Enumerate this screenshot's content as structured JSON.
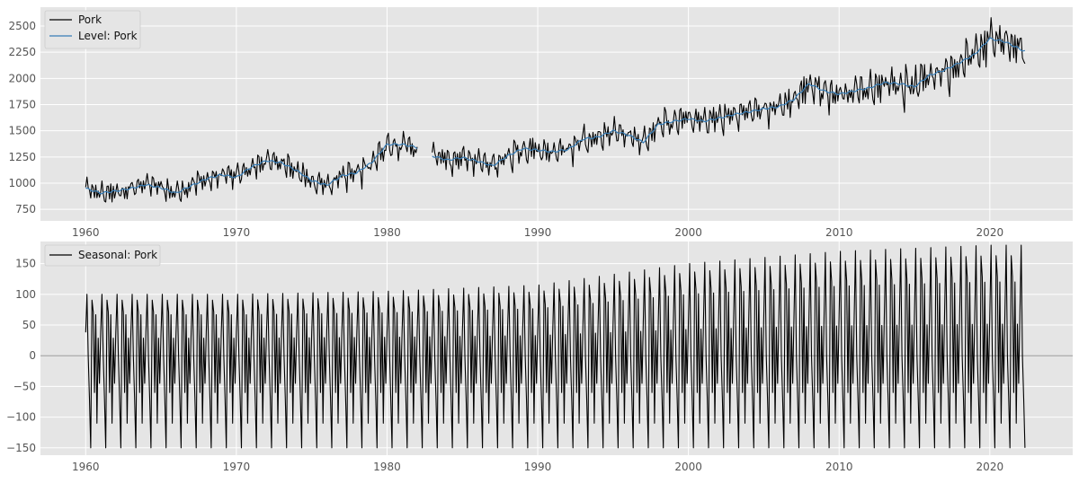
{
  "chart_data": [
    {
      "type": "line",
      "title": "",
      "xlabel": "",
      "ylabel": "",
      "xlim": [
        1957,
        2025.5
      ],
      "ylim": [
        640,
        2680
      ],
      "grid": true,
      "legend": "top-left",
      "x_ticks": [
        1960,
        1970,
        1980,
        1990,
        2000,
        2010,
        2020
      ],
      "x_tick_labels": [
        "1960",
        "1970",
        "1980",
        "1990",
        "2000",
        "2010",
        "2020"
      ],
      "y_ticks": [
        750,
        1000,
        1250,
        1500,
        1750,
        2000,
        2250,
        2500
      ],
      "y_tick_labels": [
        "750",
        "1000",
        "1250",
        "1500",
        "1750",
        "2000",
        "2250",
        "2500"
      ],
      "series": [
        {
          "name": "Pork",
          "color": "#000000",
          "description": "monthly values oscillating around the level series; gap in early 1982",
          "amplitude_points": [
            [
              1960,
              120
            ],
            [
              1975,
              150
            ],
            [
              1990,
              160
            ],
            [
              2000,
              160
            ],
            [
              2008,
              180
            ],
            [
              2020,
              240
            ],
            [
              2022.3,
              220
            ]
          ]
        },
        {
          "name": "Level: Pork",
          "color": "#377eb8",
          "points": [
            [
              1960.0,
              950
            ],
            [
              1961.0,
              905
            ],
            [
              1962.0,
              925
            ],
            [
              1963.0,
              950
            ],
            [
              1964.0,
              985
            ],
            [
              1965.0,
              955
            ],
            [
              1966.0,
              905
            ],
            [
              1967.0,
              975
            ],
            [
              1968.0,
              1040
            ],
            [
              1969.0,
              1080
            ],
            [
              1970.0,
              1055
            ],
            [
              1971.0,
              1155
            ],
            [
              1972.0,
              1215
            ],
            [
              1973.0,
              1195
            ],
            [
              1974.0,
              1120
            ],
            [
              1975.0,
              1025
            ],
            [
              1976.0,
              980
            ],
            [
              1977.0,
              1070
            ],
            [
              1978.0,
              1100
            ],
            [
              1979.0,
              1200
            ],
            [
              1980.0,
              1370
            ],
            [
              1981.0,
              1370
            ],
            [
              1981.9,
              1345
            ],
            [
              1983.0,
              1260
            ],
            [
              1984.0,
              1220
            ],
            [
              1985.0,
              1245
            ],
            [
              1986.0,
              1210
            ],
            [
              1987.0,
              1165
            ],
            [
              1988.0,
              1260
            ],
            [
              1989.0,
              1330
            ],
            [
              1990.0,
              1315
            ],
            [
              1991.0,
              1300
            ],
            [
              1992.0,
              1320
            ],
            [
              1993.0,
              1420
            ],
            [
              1994.0,
              1440
            ],
            [
              1995.0,
              1500
            ],
            [
              1996.0,
              1460
            ],
            [
              1997.0,
              1390
            ],
            [
              1998.0,
              1560
            ],
            [
              1999.0,
              1590
            ],
            [
              2000.0,
              1615
            ],
            [
              2001.0,
              1590
            ],
            [
              2002.0,
              1620
            ],
            [
              2003.0,
              1655
            ],
            [
              2004.0,
              1680
            ],
            [
              2005.0,
              1710
            ],
            [
              2006.0,
              1730
            ],
            [
              2007.0,
              1800
            ],
            [
              2008.0,
              1950
            ],
            [
              2009.0,
              1880
            ],
            [
              2010.0,
              1850
            ],
            [
              2011.0,
              1880
            ],
            [
              2012.0,
              1910
            ],
            [
              2013.0,
              1960
            ],
            [
              2014.0,
              1950
            ],
            [
              2015.0,
              1920
            ],
            [
              2016.0,
              2030
            ],
            [
              2017.0,
              2080
            ],
            [
              2018.0,
              2150
            ],
            [
              2019.0,
              2230
            ],
            [
              2020.0,
              2380
            ],
            [
              2021.0,
              2350
            ],
            [
              2022.3,
              2260
            ]
          ]
        }
      ]
    },
    {
      "type": "line",
      "title": "",
      "xlabel": "",
      "ylabel": "",
      "xlim": [
        1957,
        2025.5
      ],
      "ylim": [
        -162,
        186
      ],
      "grid": true,
      "legend": "top-left",
      "zero_line": true,
      "x_ticks": [
        1960,
        1970,
        1980,
        1990,
        2000,
        2010,
        2020
      ],
      "x_tick_labels": [
        "1960",
        "1970",
        "1980",
        "1990",
        "2000",
        "2010",
        "2020"
      ],
      "y_ticks": [
        -150,
        -100,
        -50,
        0,
        50,
        100,
        150
      ],
      "y_tick_labels": [
        "−150",
        "−100",
        "−50",
        "0",
        "50",
        "100",
        "150"
      ],
      "series": [
        {
          "name": "Seasonal: Pork",
          "color": "#000000",
          "description": "12-month periodic component; annual peak near +100 rising to about +175, trough near −150",
          "annual_profile": [
            40,
            105,
            0,
            -70,
            -150,
            95,
            75,
            -60,
            70,
            -110,
            30,
            -45
          ],
          "range_points": [
            [
              1960,
              100,
              -150
            ],
            [
              1970,
              100,
              -150
            ],
            [
              1980,
              105,
              -150
            ],
            [
              1990,
              115,
              -150
            ],
            [
              2000,
              150,
              -150
            ],
            [
              2010,
              170,
              -150
            ],
            [
              2020,
              180,
              -150
            ]
          ],
          "start_year": 1960.0,
          "end_year": 2022.3
        }
      ]
    }
  ]
}
